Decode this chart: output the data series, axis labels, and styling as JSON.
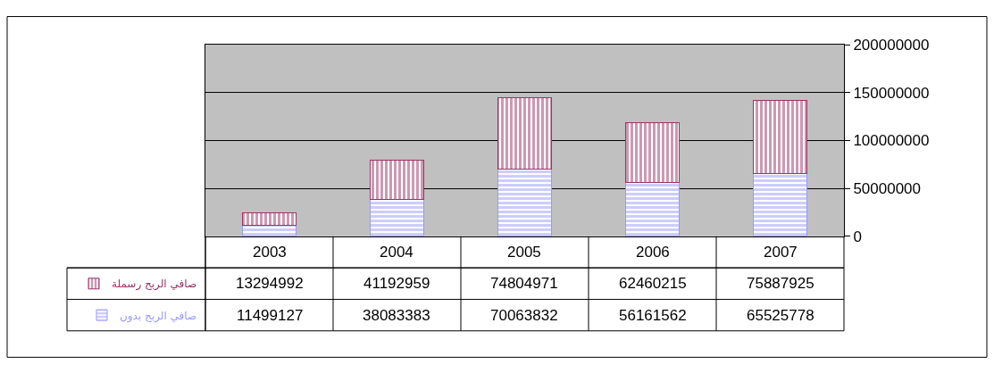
{
  "chart_data": {
    "type": "bar",
    "stacked": true,
    "categories": [
      "2003",
      "2004",
      "2005",
      "2006",
      "2007"
    ],
    "series": [
      {
        "name": "صافي الربح بدون",
        "color": "#9999ff",
        "values": [
          11499127,
          38083383,
          70063832,
          56161562,
          65525778
        ]
      },
      {
        "name": "صافي الربح رسملة",
        "color": "#993366",
        "values": [
          13294992,
          41192959,
          74804971,
          62460215,
          75887925
        ]
      }
    ],
    "ylim": [
      0,
      200000000
    ],
    "yticks": [
      0,
      50000000,
      100000000,
      150000000,
      200000000
    ],
    "grid": "y",
    "data_labels": true,
    "legend": "bottom left"
  }
}
